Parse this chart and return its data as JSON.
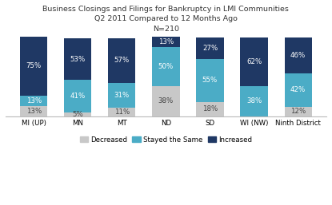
{
  "title_line1": "Business Closings and Filings for Bankruptcy in LMI Communities",
  "title_line2": "Q2 2011 Compared to 12 Months Ago",
  "title_line3": "N=210",
  "categories": [
    "MI (UP)",
    "MN",
    "MT",
    "ND",
    "SD",
    "WI (NW)",
    "Ninth District"
  ],
  "decreased": [
    13,
    5,
    11,
    38,
    18,
    0,
    12
  ],
  "stayed_same": [
    13,
    41,
    31,
    50,
    55,
    38,
    42
  ],
  "increased": [
    75,
    53,
    57,
    13,
    27,
    62,
    46
  ],
  "color_decreased": "#c8c8c8",
  "color_stayed": "#4bacc6",
  "color_increased": "#1f3864",
  "background_color": "#ffffff",
  "legend_labels": [
    "Decreased",
    "Stayed the Same",
    "Increased"
  ],
  "ylim": [
    0,
    101
  ],
  "bar_width": 0.62
}
